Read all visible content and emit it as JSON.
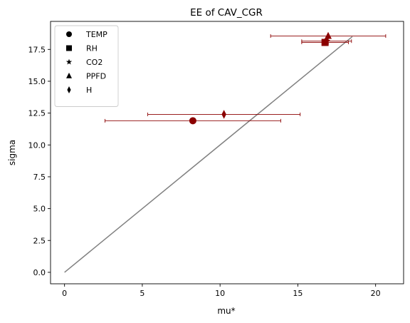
{
  "chart_data": {
    "type": "scatter",
    "title": "EE of CAV_CGR",
    "xlabel": "mu*",
    "ylabel": "sigma",
    "xlim": [
      -0.9,
      21.8
    ],
    "ylim": [
      -0.9,
      19.7
    ],
    "xticks": [
      0,
      5,
      10,
      15,
      20
    ],
    "yticks": [
      0.0,
      2.5,
      5.0,
      7.5,
      10.0,
      12.5,
      15.0,
      17.5
    ],
    "ytick_labels": [
      "0.0",
      "2.5",
      "5.0",
      "7.5",
      "10.0",
      "12.5",
      "15.0",
      "17.5"
    ],
    "grid": false,
    "legend_position": "top-left",
    "marker_color": "#8b0000",
    "line_color": "#808080",
    "reference_line": {
      "x": [
        0,
        18.5
      ],
      "y": [
        0,
        18.5
      ]
    },
    "series": [
      {
        "name": "TEMP",
        "marker": "circle",
        "x": 8.25,
        "y": 11.9,
        "xerr": 5.65
      },
      {
        "name": "RH",
        "marker": "square",
        "x": 16.75,
        "y": 18.05,
        "xerr": 1.5
      },
      {
        "name": "CO2",
        "marker": "star",
        "x": 16.85,
        "y": 18.15,
        "xerr": 1.6
      },
      {
        "name": "PPFD",
        "marker": "triangle",
        "x": 16.95,
        "y": 18.55,
        "xerr": 3.7
      },
      {
        "name": "H",
        "marker": "diamond",
        "x": 10.25,
        "y": 12.4,
        "xerr": 4.9
      }
    ]
  }
}
